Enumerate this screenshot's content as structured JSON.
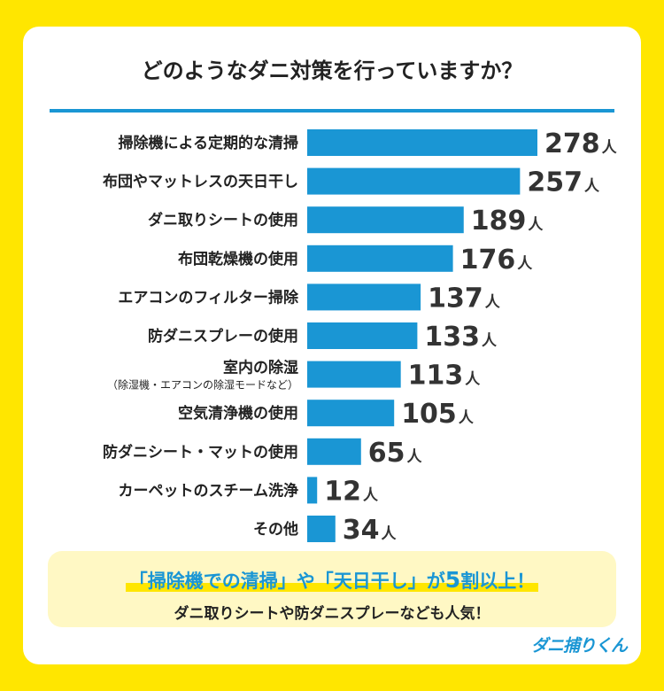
{
  "chart_data": {
    "type": "bar",
    "orientation": "horizontal",
    "title": "どのようなダニ対策を行っていますか？",
    "unit": "人",
    "categories": [
      "掃除機による定期的な清掃",
      "布団やマットレスの天日干し",
      "ダニ取りシートの使用",
      "布団乾燥機の使用",
      "エアコンのフィルター掃除",
      "防ダニスプレーの使用",
      "室内の除湿",
      "空気清浄機の使用",
      "防ダニシート・マットの使用",
      "カーペットのスチーム洗浄",
      "その他"
    ],
    "sublabels": [
      "",
      "",
      "",
      "",
      "",
      "",
      "（除湿機・エアコンの除湿モードなど）",
      "",
      "",
      "",
      ""
    ],
    "values": [
      278,
      257,
      189,
      176,
      137,
      133,
      113,
      105,
      65,
      12,
      34
    ],
    "xlim": [
      0,
      278
    ],
    "color": "#1a96d4"
  },
  "summary": {
    "highlight_part1": "「掃除機での清掃」や「天日干し」が",
    "highlight_num": "5",
    "highlight_part2": "割以上！",
    "subtext": "ダニ取りシートや防ダニスプレーなども人気！"
  },
  "brand": {
    "logo_text": "ダニ捕りくん"
  },
  "colors": {
    "background": "#ffe600",
    "accent": "#1a96d4",
    "note_bg": "#fff8c4"
  }
}
